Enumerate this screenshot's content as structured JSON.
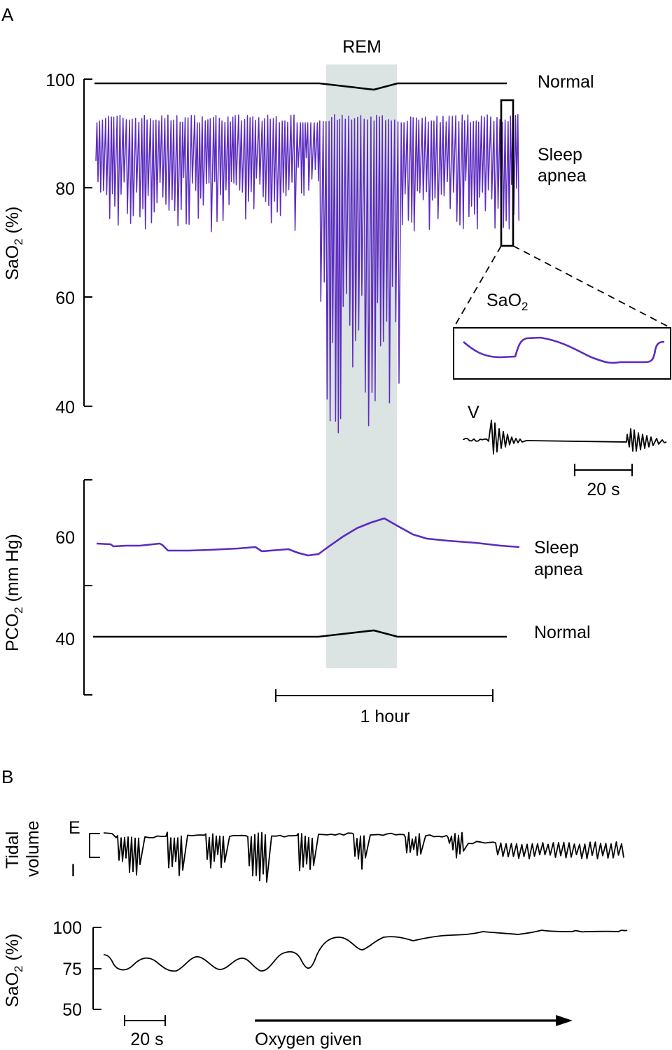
{
  "colors": {
    "sleep_apnea": "#5b2bc0",
    "normal": "#000000",
    "rem_band": "#dbe3e3"
  },
  "chart_data": [
    {
      "panel": "A",
      "type": "line",
      "ylabel_main": "SaO",
      "ylabel_sub": "2",
      "ylabel_unit": " (%)",
      "yticks": [
        "100",
        "80",
        "60",
        "40"
      ],
      "ylim": [
        40,
        100
      ],
      "shaded_label": "REM",
      "series": [
        {
          "name": "Normal",
          "y_start": 99,
          "y_rem_min": 98,
          "y_end": 99
        },
        {
          "name_line1": "Sleep",
          "name_line2": "apnea",
          "y_top_typical": 93,
          "y_bottom_typical": 73,
          "y_rem_min": 33
        }
      ],
      "inset": {
        "sao2_main": "SaO",
        "sao2_sub": "2",
        "v_label": "V",
        "scalebar": "20 s"
      }
    },
    {
      "panel": "",
      "type": "line",
      "ylabel_main": "PCO",
      "ylabel_sub": "2",
      "ylabel_unit": " (mm Hg)",
      "yticks": [
        "60",
        "40"
      ],
      "series": [
        {
          "name_line1": "Sleep",
          "name_line2": "apnea",
          "y_start": 58,
          "y_rem_max": 63.5,
          "y_end": 57.5
        },
        {
          "name": "Normal",
          "y_start": 40,
          "y_rem_max": 41.2,
          "y_end": 40
        }
      ],
      "scalebar": "1 hour"
    },
    {
      "panel": "B",
      "type": "line",
      "tidal_label_1": "Tidal",
      "tidal_label_2": "volume",
      "tidal_ticks": [
        "E",
        "I"
      ],
      "ylabel_main": "SaO",
      "ylabel_sub": "2",
      "ylabel_unit": " (%)",
      "yticks": [
        "100",
        "75",
        "50"
      ],
      "ylim": [
        50,
        100
      ],
      "scalebar": "20 s",
      "arrow_label": "Oxygen given"
    }
  ]
}
